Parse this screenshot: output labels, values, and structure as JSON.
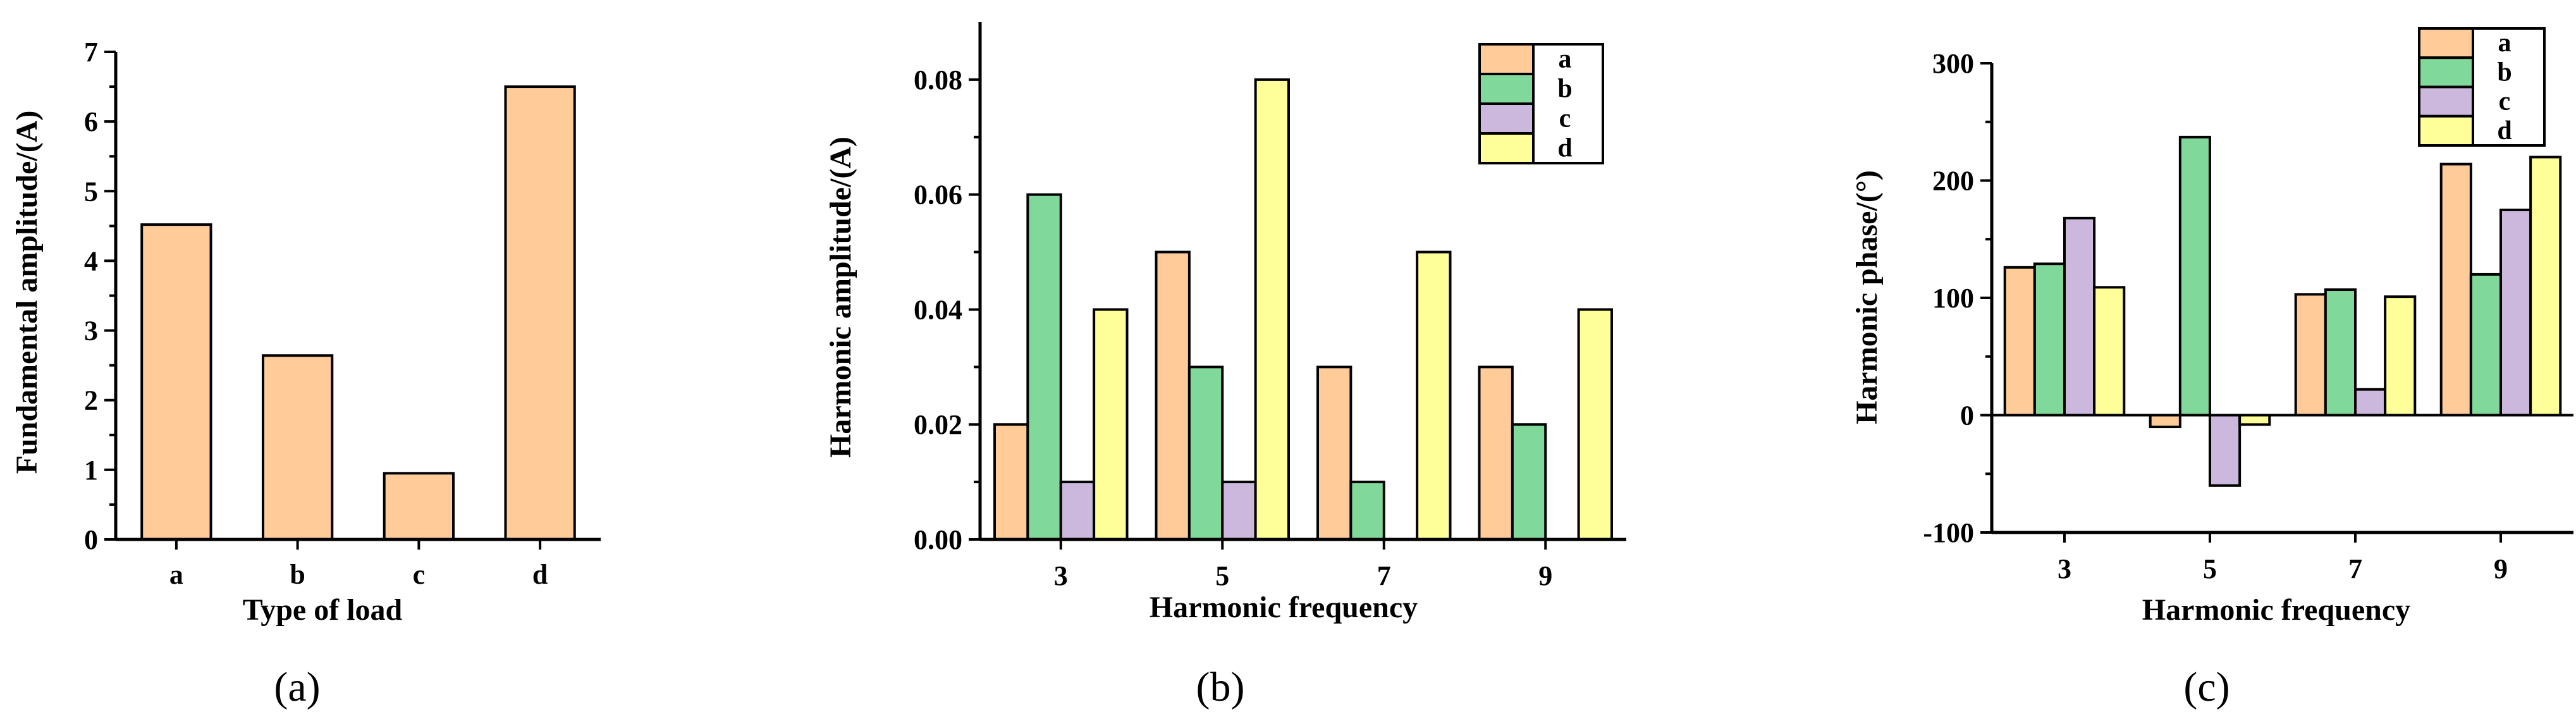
{
  "colors": {
    "a": "#FFCC99",
    "b": "#80D99A",
    "c": "#CBB8DC",
    "d": "#FFFF99"
  },
  "chart_data": [
    {
      "panel": "(a)",
      "type": "bar",
      "categories": [
        "a",
        "b",
        "c",
        "d"
      ],
      "values": [
        4.52,
        2.64,
        0.95,
        6.5
      ],
      "xlabel": "Type of load",
      "ylabel": "Fundamental amplitude/(A)",
      "ylim": [
        0,
        7
      ],
      "yticks": [
        "0",
        "1",
        "2",
        "3",
        "4",
        "5",
        "6",
        "7"
      ],
      "grid": false
    },
    {
      "panel": "(b)",
      "type": "bar",
      "categories": [
        "3",
        "5",
        "7",
        "9"
      ],
      "series": [
        {
          "name": "a",
          "values": [
            0.02,
            0.05,
            0.03,
            0.03
          ]
        },
        {
          "name": "b",
          "values": [
            0.06,
            0.03,
            0.01,
            0.02
          ]
        },
        {
          "name": "c",
          "values": [
            0.01,
            0.01,
            0.0,
            0.0
          ]
        },
        {
          "name": "d",
          "values": [
            0.04,
            0.08,
            0.05,
            0.04
          ]
        }
      ],
      "xlabel": "Harmonic frequency",
      "ylabel": "Harmonic amplitude/(A)",
      "ylim": [
        0,
        0.09
      ],
      "yticks": [
        "0.00",
        "0.02",
        "0.04",
        "0.06",
        "0.08"
      ],
      "legend": "top-right",
      "grid": false
    },
    {
      "panel": "(c)",
      "type": "bar",
      "categories": [
        "3",
        "5",
        "7",
        "9"
      ],
      "series": [
        {
          "name": "a",
          "values": [
            126,
            -10,
            103,
            214
          ]
        },
        {
          "name": "b",
          "values": [
            129,
            237,
            107,
            120
          ]
        },
        {
          "name": "c",
          "values": [
            168,
            -60,
            22,
            175
          ]
        },
        {
          "name": "d",
          "values": [
            109,
            -8,
            101,
            220
          ]
        }
      ],
      "xlabel": "Harmonic frequency",
      "ylabel": "Harmonic phase/(°)",
      "ylim": [
        -100,
        300
      ],
      "yticks": [
        "-100",
        "0",
        "100",
        "200",
        "300"
      ],
      "legend": "top-right",
      "grid": false
    }
  ]
}
